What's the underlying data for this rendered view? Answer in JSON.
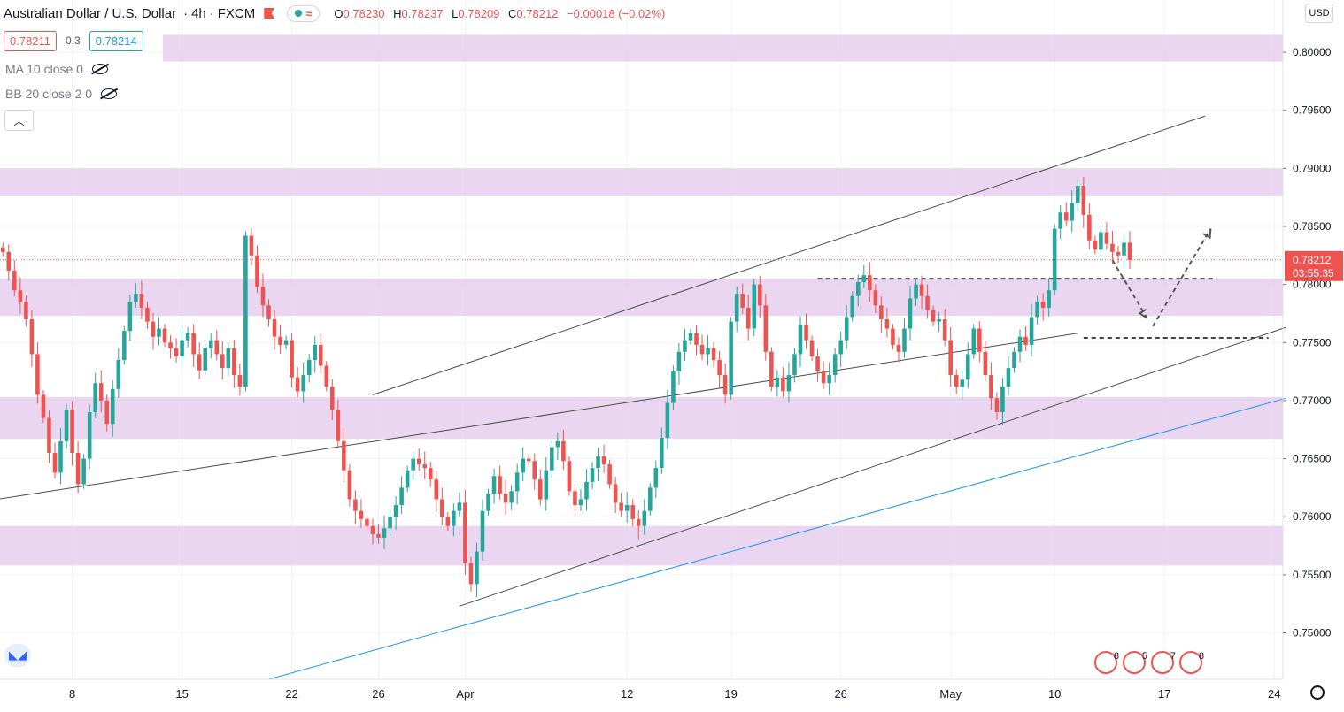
{
  "header": {
    "symbol": "Australian Dollar / U.S. Dollar",
    "interval": "4h",
    "exchange": "FXCM",
    "open_label": "O",
    "open": "0.78230",
    "high_label": "H",
    "high": "0.78237",
    "low_label": "L",
    "low": "0.78209",
    "close_label": "C",
    "close": "0.78212",
    "change": "−0.00018 (−0.02%)"
  },
  "trade": {
    "sell": "0.78211",
    "spread": "0.3",
    "buy": "0.78214"
  },
  "indicators": [
    {
      "label": "MA 10 close 0"
    },
    {
      "label": "BB 20 close 2 0"
    }
  ],
  "currency": "USD",
  "price_axis": {
    "last_price": "0.78212",
    "countdown": "03:55:35"
  },
  "events": [
    {
      "count": "8"
    },
    {
      "count": "5"
    },
    {
      "count": "7"
    },
    {
      "count": "8"
    }
  ],
  "colors": {
    "up": "#26a69a",
    "down": "#ef5350",
    "zone": "#e1c4e9",
    "trend_blue": "#2196f3",
    "line_gray": "#4a4a4a"
  },
  "chart_data": {
    "type": "candlestick",
    "ylim": [
      0.746,
      0.8045
    ],
    "y_ticks": [
      "0.80000",
      "0.79500",
      "0.79000",
      "0.78500",
      "0.78000",
      "0.77500",
      "0.77000",
      "0.76500",
      "0.76000",
      "0.75500",
      "0.75000"
    ],
    "x_ticks": [
      {
        "label": "8",
        "idx": 12
      },
      {
        "label": "15",
        "idx": 31
      },
      {
        "label": "22",
        "idx": 50
      },
      {
        "label": "26",
        "idx": 65
      },
      {
        "label": "Apr",
        "idx": 80
      },
      {
        "label": "12",
        "idx": 108
      },
      {
        "label": "19",
        "idx": 126
      },
      {
        "label": "26",
        "idx": 145
      },
      {
        "label": "May",
        "idx": 164
      },
      {
        "label": "10",
        "idx": 182
      },
      {
        "label": "17",
        "idx": 201
      },
      {
        "label": "24",
        "idx": 220
      }
    ],
    "n_slots": 222,
    "last_price": 0.78212,
    "closes": [
      0.7828,
      0.7812,
      0.7795,
      0.7785,
      0.777,
      0.774,
      0.7705,
      0.7685,
      0.7655,
      0.7638,
      0.7665,
      0.7692,
      0.7655,
      0.7628,
      0.765,
      0.769,
      0.7715,
      0.77,
      0.768,
      0.771,
      0.7735,
      0.776,
      0.7785,
      0.7792,
      0.778,
      0.7768,
      0.7755,
      0.7762,
      0.775,
      0.7745,
      0.7738,
      0.7752,
      0.7758,
      0.774,
      0.7726,
      0.7745,
      0.7752,
      0.774,
      0.7728,
      0.7745,
      0.7722,
      0.7712,
      0.7842,
      0.7825,
      0.7798,
      0.7782,
      0.777,
      0.7755,
      0.7748,
      0.7752,
      0.772,
      0.7708,
      0.7722,
      0.7735,
      0.7748,
      0.773,
      0.7712,
      0.7692,
      0.7665,
      0.764,
      0.7615,
      0.7605,
      0.7598,
      0.7592,
      0.7585,
      0.7582,
      0.759,
      0.76,
      0.761,
      0.7625,
      0.764,
      0.765,
      0.7645,
      0.7642,
      0.7632,
      0.7615,
      0.76,
      0.7592,
      0.7605,
      0.7612,
      0.756,
      0.7542,
      0.757,
      0.7605,
      0.762,
      0.7635,
      0.762,
      0.7612,
      0.7622,
      0.7638,
      0.765,
      0.7648,
      0.7632,
      0.7615,
      0.764,
      0.766,
      0.7665,
      0.7648,
      0.7622,
      0.761,
      0.7615,
      0.763,
      0.7642,
      0.7652,
      0.7645,
      0.7628,
      0.7612,
      0.7605,
      0.761,
      0.7598,
      0.7592,
      0.7605,
      0.7625,
      0.7642,
      0.7668,
      0.7698,
      0.7725,
      0.7742,
      0.7752,
      0.7758,
      0.7748,
      0.774,
      0.7745,
      0.7735,
      0.7722,
      0.7705,
      0.7768,
      0.7792,
      0.778,
      0.7762,
      0.78,
      0.7782,
      0.7742,
      0.7712,
      0.772,
      0.7708,
      0.7722,
      0.774,
      0.7765,
      0.7752,
      0.7738,
      0.7725,
      0.7715,
      0.7722,
      0.774,
      0.7752,
      0.7772,
      0.779,
      0.7802,
      0.7808,
      0.7795,
      0.7782,
      0.777,
      0.7762,
      0.7748,
      0.7742,
      0.7762,
      0.7788,
      0.78,
      0.779,
      0.7778,
      0.7768,
      0.777,
      0.7752,
      0.7722,
      0.7712,
      0.7718,
      0.774,
      0.7762,
      0.7742,
      0.7722,
      0.7702,
      0.769,
      0.7712,
      0.7728,
      0.7742,
      0.7755,
      0.7748,
      0.7772,
      0.7785,
      0.778,
      0.7795,
      0.7848,
      0.7862,
      0.7855,
      0.787,
      0.7885,
      0.786,
      0.7838,
      0.783,
      0.7845,
      0.7835,
      0.7828,
      0.7825,
      0.7836,
      0.7821
    ]
  }
}
